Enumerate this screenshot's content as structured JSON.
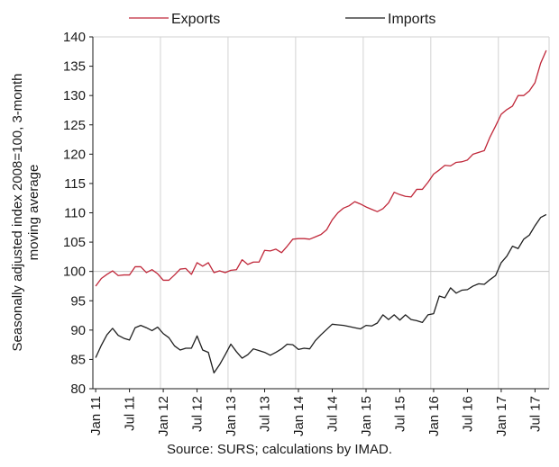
{
  "chart_data": {
    "type": "line",
    "ylabel_lines": [
      "Seasonally adjusted index 2008=100, 3-month",
      "moving average"
    ],
    "ylim": [
      80,
      140
    ],
    "yticks": [
      80,
      85,
      90,
      95,
      100,
      105,
      110,
      115,
      120,
      125,
      130,
      135,
      140
    ],
    "xtick_labels": [
      "Jan 11",
      "Jul 11",
      "Jan 12",
      "Jul 12",
      "Jan 13",
      "Jul 13",
      "Jan 14",
      "Jul 14",
      "Jan 15",
      "Jul 15",
      "Jan 16",
      "Jul 16",
      "Jan 17",
      "Jul 17"
    ],
    "x_start": "Jan 2011",
    "x_frequency": "monthly",
    "grid": "vertical gridlines plus horizontal reference line at 100",
    "legend_position": "top",
    "series": [
      {
        "name": "Exports",
        "color": "#c0283a",
        "values": [
          97.5,
          98.8,
          99.5,
          100.1,
          99.3,
          99.4,
          99.4,
          100.8,
          100.8,
          99.8,
          100.3,
          99.6,
          98.5,
          98.5,
          99.4,
          100.4,
          100.5,
          99.5,
          101.5,
          100.9,
          101.5,
          99.8,
          100.1,
          99.8,
          100.2,
          100.3,
          102.0,
          101.2,
          101.6,
          101.6,
          103.6,
          103.5,
          103.8,
          103.2,
          104.3,
          105.5,
          105.6,
          105.6,
          105.5,
          105.9,
          106.3,
          107.1,
          108.8,
          110.0,
          110.8,
          111.2,
          111.9,
          111.5,
          111.0,
          110.6,
          110.2,
          110.7,
          111.7,
          113.5,
          113.1,
          112.8,
          112.7,
          114.0,
          114.0,
          115.2,
          116.6,
          117.3,
          118.1,
          118.0,
          118.6,
          118.7,
          119.0,
          120.0,
          120.3,
          120.6,
          122.9,
          124.8,
          126.8,
          127.6,
          128.2,
          130.0,
          130.0,
          130.8,
          132.2,
          135.5,
          137.7
        ],
        "line_label": "Exports"
      },
      {
        "name": "Imports",
        "color": "#1f1f1f",
        "values": [
          85.3,
          87.4,
          89.2,
          90.3,
          89.1,
          88.6,
          88.3,
          90.4,
          90.8,
          90.4,
          89.9,
          90.5,
          89.4,
          88.7,
          87.3,
          86.6,
          86.9,
          86.9,
          89.0,
          86.6,
          86.2,
          82.7,
          84.1,
          85.8,
          87.6,
          86.3,
          85.2,
          85.8,
          86.8,
          86.5,
          86.2,
          85.7,
          86.2,
          86.8,
          87.6,
          87.5,
          86.7,
          86.9,
          86.8,
          88.2,
          89.2,
          90.1,
          91.0,
          90.9,
          90.8,
          90.6,
          90.4,
          90.2,
          90.8,
          90.7,
          91.2,
          92.6,
          91.8,
          92.6,
          91.7,
          92.6,
          91.8,
          91.6,
          91.3,
          92.6,
          92.8,
          95.8,
          95.5,
          97.2,
          96.3,
          96.8,
          96.9,
          97.5,
          97.9,
          97.8,
          98.6,
          99.3,
          101.5,
          102.6,
          104.3,
          103.9,
          105.5,
          106.2,
          107.8,
          109.2,
          109.7
        ],
        "line_label": "Imports"
      }
    ],
    "legend": [
      {
        "label": "Exports",
        "color": "#c0283a"
      },
      {
        "label": "Imports",
        "color": "#1f1f1f"
      }
    ]
  },
  "source_note": "Source: SURS; calculations by IMAD."
}
